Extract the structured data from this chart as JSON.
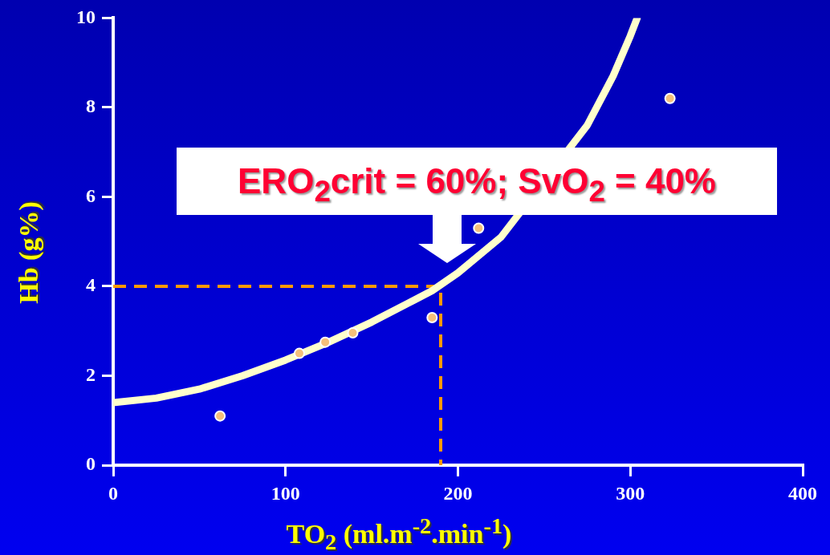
{
  "chart_data": {
    "type": "scatter",
    "xlabel": "TO$_{2}$ (ml.m$^{-2}$.min$^{-1}$)",
    "ylabel": "Hb (g%)",
    "annotations": [
      "ERO$_{2}$crit = 60%; SvO$_{2}$ = 40%"
    ],
    "xlim": [
      0,
      400
    ],
    "xticks": [
      0,
      100,
      200,
      300,
      400
    ],
    "ylim": [
      0,
      10
    ],
    "yticks": [
      0,
      2,
      4,
      6,
      8,
      10
    ],
    "grid": false,
    "legend": false,
    "marker": "circle",
    "series": [
      {
        "color": "#f5c07a",
        "x": [
          62,
          108,
          123,
          139,
          185,
          212,
          323
        ],
        "values": [
          1.1,
          2.5,
          2.75,
          2.96,
          3.3,
          5.3,
          8.2
        ]
      },
      {
        "type": "line",
        "color": "#ffffcc",
        "marker": "none",
        "x": [
          0,
          25,
          50,
          75,
          100,
          125,
          150,
          175,
          185,
          200,
          225,
          275,
          290,
          300,
          304
        ],
        "values": [
          1.4,
          1.5,
          1.7,
          2.0,
          2.35,
          2.75,
          3.2,
          3.7,
          3.9,
          4.3,
          5.1,
          7.6,
          8.7,
          9.6,
          10
        ]
      },
      {
        "type": "line",
        "color": "#ff9900",
        "marker": "none",
        "line_style": "dashed",
        "x": [
          0,
          190,
          190
        ],
        "values": [
          4,
          4,
          0
        ]
      }
    ]
  }
}
